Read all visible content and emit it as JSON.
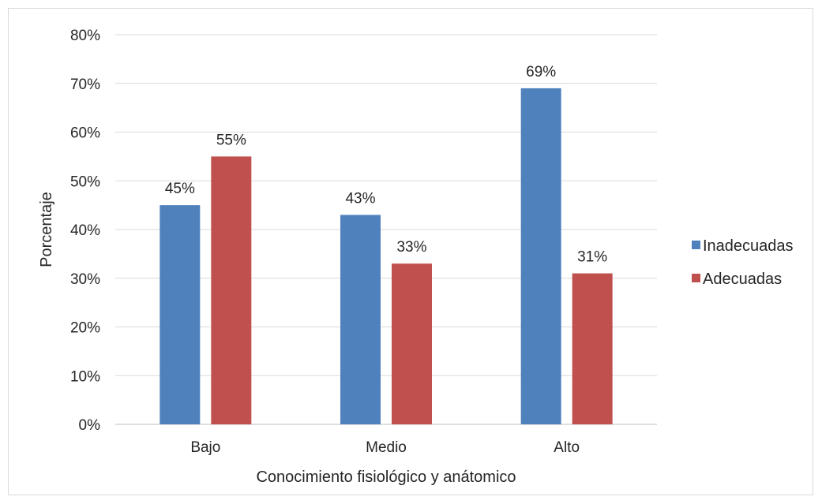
{
  "chart_data": {
    "type": "bar",
    "title": "",
    "xlabel": "Conocimiento fisiológico y anátomico",
    "ylabel": "Porcentaje",
    "categories": [
      "Bajo",
      "Medio",
      "Alto"
    ],
    "series": [
      {
        "name": "Inadecuadas",
        "values": [
          45,
          43,
          69
        ],
        "labels": [
          "45%",
          "43%",
          "69%"
        ],
        "color": "#4f81bd"
      },
      {
        "name": "Adecuadas",
        "values": [
          55,
          33,
          31
        ],
        "labels": [
          "55%",
          "33%",
          "31%"
        ],
        "color": "#c0504d"
      }
    ],
    "ylim": [
      0,
      80
    ],
    "yticks": [
      "0%",
      "10%",
      "20%",
      "30%",
      "40%",
      "50%",
      "60%",
      "70%",
      "80%"
    ],
    "grid": true,
    "legend_position": "right"
  }
}
